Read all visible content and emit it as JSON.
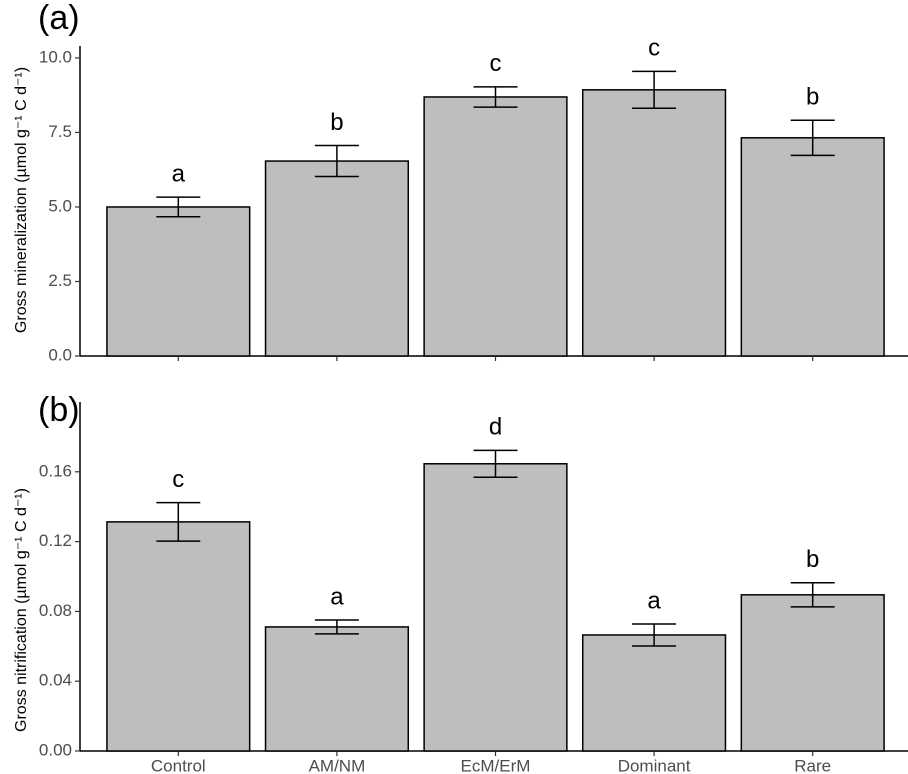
{
  "chart_data": [
    {
      "type": "bar",
      "panel_label": "(a)",
      "y_label": "Gross mineralization (µmol g⁻¹ C d⁻¹)",
      "categories": [
        null,
        null,
        null,
        null,
        null
      ],
      "values": [
        5.0,
        6.54,
        8.69,
        8.93,
        7.32
      ],
      "errors": [
        0.33,
        0.52,
        0.34,
        0.62,
        0.59
      ],
      "letters": [
        "a",
        "b",
        "c",
        "c",
        "b"
      ],
      "color": "#bebebe",
      "ylim": [
        0,
        10.4
      ],
      "yticks": [
        {
          "value": 0,
          "label": "0.0"
        },
        2.5,
        {
          "value": 5,
          "label": "5.0"
        },
        7.5,
        {
          "value": 10,
          "label": "10.0"
        }
      ]
    },
    {
      "type": "bar",
      "panel_label": "(b)",
      "y_label": "Gross nitrification (µmol g⁻¹ C d⁻¹)",
      "categories": [
        "Control",
        "AM/NM",
        "EcM/ErM",
        "Dominant",
        "Rare"
      ],
      "values": [
        0.1313,
        0.0711,
        0.1646,
        0.0665,
        0.0895
      ],
      "errors": [
        0.011,
        0.004,
        0.0077,
        0.0063,
        0.0069
      ],
      "letters": [
        "c",
        "a",
        "d",
        "a",
        "b"
      ],
      "color": "#bebebe",
      "ylim": [
        0,
        0.2
      ],
      "yticks": [
        {
          "value": 0,
          "label": "0.00"
        },
        0.04,
        0.08,
        0.12,
        0.16
      ]
    }
  ]
}
